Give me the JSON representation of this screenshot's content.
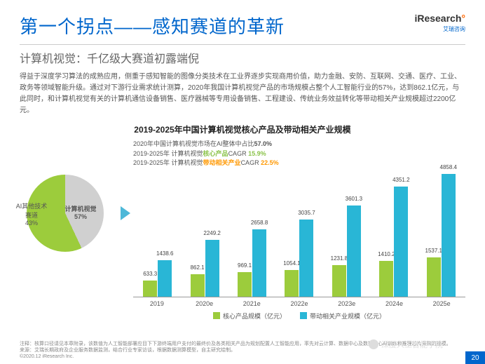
{
  "header": {
    "title": "第一个拐点——感知赛道的革新",
    "subtitle": "计算机视觉：千亿级大赛道初露端倪",
    "logo": "iResearch",
    "logo_sub": "艾瑞咨询"
  },
  "body": "得益于深度学习算法的成熟应用，侧重于感知智能的图像分类技术在工业界逐步实现商用价值，助力金融、安防、互联网、交通、医疗、工业、政务等领域智能升级。通过对下游行业需求统计测算，2020年我国计算机视觉产品的市场规模占整个人工智能行业的57%，达到862.1亿元，与此同时，和计算机视觉有关的计算机通信设备销售、医疗器械等专用设备销售、工程建设、传统业务效益转化等带动相关产业规模超过2200亿元。",
  "chart": {
    "title": "2019-2025年中国计算机视觉核心产品及带动相关产业规模",
    "notes": {
      "n1": "2020年中国计算机视觉市场在AI整体中占比",
      "n1v": "57.0%",
      "n2": "2019-2025年 计算机视觉",
      "n2a": "核心产品",
      "n2b": "CAGR",
      "n2v": "15.9%",
      "n3": "2019-2025年 计算机视觉",
      "n3a": "带动相关产业",
      "n3b": "CAGR",
      "n3v": "22.5%"
    },
    "pie": {
      "slice1": {
        "label": "AI其他技术赛道",
        "pct": "43%",
        "color": "#d0d0d0"
      },
      "slice2": {
        "label": "计算机视觉",
        "pct": "57%",
        "color": "#9ccc3c"
      }
    },
    "categories": [
      "2019",
      "2020e",
      "2021e",
      "2022e",
      "2023e",
      "2024e",
      "2025e"
    ],
    "series1": {
      "name": "核心产品规模（亿元）",
      "color": "#9ccc3c",
      "values": [
        633.3,
        862.1,
        969.1,
        1054.1,
        1231.8,
        1410.2,
        1537.1
      ]
    },
    "series2": {
      "name": "带动相关产业规模（亿元）",
      "color": "#29b6d6",
      "values": [
        1438.6,
        2249.2,
        2658.8,
        3035.7,
        3601.3,
        4351.2,
        4858.4
      ]
    },
    "ymax": 5000
  },
  "footer": {
    "note": "注释：核算口径请见本章附录，该数值为人工智能部署应目下下游终端用户支付的最终价及各类相关产品为规划配置人工智能应用，率先对云计算、数据中心及数据中心AI训练和推理芯片采购的规模。",
    "source": "来源：艾瑞长期政府及企业服务数据监测，结合行业专家访谈，根据数据测算模型，自主研究绘制。",
    "copyright": "©2020.12 iResearch Inc.",
    "watermark": "深度人工智能学院",
    "page": "20"
  }
}
